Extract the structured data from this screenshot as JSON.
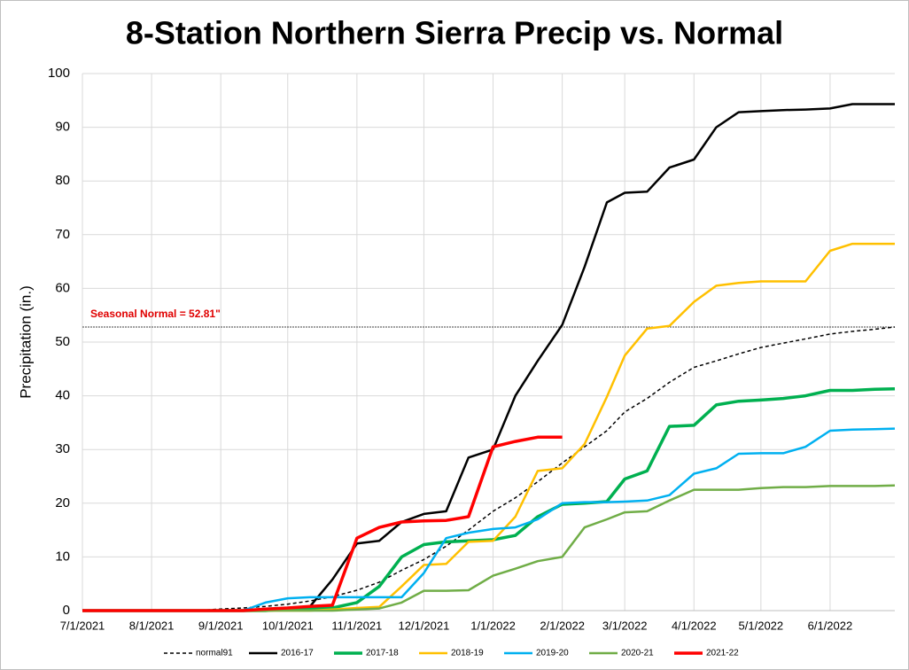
{
  "chart_data": {
    "type": "line",
    "title": "8-Station Northern Sierra Precip vs. Normal",
    "y_label": "Precipitation (in.)",
    "x": [
      "7/1/2021",
      "7/11/2021",
      "7/21/2021",
      "8/1/2021",
      "8/11/2021",
      "8/21/2021",
      "9/1/2021",
      "9/11/2021",
      "9/21/2021",
      "10/1/2021",
      "10/11/2021",
      "10/21/2021",
      "11/1/2021",
      "11/11/2021",
      "11/21/2021",
      "12/1/2021",
      "12/11/2021",
      "12/21/2021",
      "1/1/2022",
      "1/11/2022",
      "1/21/2022",
      "2/1/2022",
      "2/11/2022",
      "2/21/2022",
      "3/1/2022",
      "3/11/2022",
      "3/21/2022",
      "4/1/2022",
      "4/11/2022",
      "4/21/2022",
      "5/1/2022",
      "5/11/2022",
      "5/21/2022",
      "6/1/2022",
      "6/11/2022",
      "6/21/2022",
      "6/30/2022"
    ],
    "xlim": [
      "7/1/2021",
      "6/30/2022"
    ],
    "xticks": [
      "7/1/2021",
      "8/1/2021",
      "9/1/2021",
      "10/1/2021",
      "11/1/2021",
      "12/1/2021",
      "1/1/2022",
      "2/1/2022",
      "3/1/2022",
      "4/1/2022",
      "5/1/2022",
      "6/1/2022"
    ],
    "ylim": [
      0,
      100
    ],
    "yticks": [
      0,
      10,
      20,
      30,
      40,
      50,
      60,
      70,
      80,
      90,
      100
    ],
    "grid": true,
    "reference_line": {
      "value": 52.81,
      "label": "Seasonal Normal = 52.81\"",
      "color": "#e00000"
    },
    "legend": "bottom",
    "series": [
      {
        "name": "normal91",
        "color": "#000000",
        "dashed": true,
        "values": [
          0,
          0,
          0,
          0,
          0,
          0,
          0.3,
          0.5,
          0.8,
          1.2,
          1.8,
          2.6,
          3.8,
          5.3,
          7.5,
          9.5,
          12,
          15,
          18.5,
          21,
          24,
          27.5,
          30.5,
          33.5,
          37,
          39.5,
          42.5,
          45.3,
          46.5,
          47.8,
          49,
          49.8,
          50.6,
          51.5,
          52,
          52.4,
          52.81
        ]
      },
      {
        "name": "2016-17",
        "color": "#000000",
        "values": [
          0,
          0,
          0,
          0,
          0,
          0,
          0,
          0,
          0,
          0.2,
          0.8,
          5.8,
          12.5,
          13,
          16.5,
          18,
          18.5,
          28.5,
          30,
          40,
          46.5,
          53.2,
          64,
          76,
          77.8,
          78,
          82.5,
          84,
          90,
          92.8,
          93,
          93.2,
          93.3,
          93.5,
          94.3,
          94.3,
          94.3
        ]
      },
      {
        "name": "2017-18",
        "color": "#00b050",
        "values": [
          0,
          0,
          0,
          0,
          0,
          0,
          0,
          0,
          0,
          0.3,
          0.3,
          0.5,
          1.5,
          4.5,
          10,
          12.3,
          12.8,
          13,
          13.2,
          14,
          17.5,
          19.8,
          20,
          20.3,
          24.5,
          26,
          34.3,
          34.5,
          38.3,
          39,
          39.2,
          39.5,
          40,
          41,
          41,
          41.2,
          41.3
        ]
      },
      {
        "name": "2018-19",
        "color": "#ffc000",
        "values": [
          0,
          0,
          0,
          0,
          0,
          0,
          0,
          0,
          0,
          0,
          0,
          0.2,
          0.5,
          0.7,
          4.5,
          8.5,
          8.7,
          12.8,
          13,
          17.5,
          26,
          26.5,
          31,
          39.8,
          47.5,
          52.5,
          53,
          57.5,
          60.5,
          61,
          61.3,
          61.3,
          61.3,
          67,
          68.3,
          68.3,
          68.3
        ]
      },
      {
        "name": "2019-20",
        "color": "#00b0f0",
        "values": [
          0,
          0,
          0,
          0,
          0,
          0,
          0,
          0,
          1.5,
          2.3,
          2.5,
          2.5,
          2.5,
          2.5,
          2.5,
          7,
          13.5,
          14.5,
          15.2,
          15.5,
          17,
          20,
          20.2,
          20.2,
          20.3,
          20.5,
          21.5,
          25.5,
          26.5,
          29.2,
          29.3,
          29.3,
          30.5,
          33.5,
          33.7,
          33.8,
          33.9
        ]
      },
      {
        "name": "2020-21",
        "color": "#70ad47",
        "values": [
          0,
          0,
          0,
          0,
          0,
          0,
          0,
          0,
          0,
          0,
          0,
          0,
          0.2,
          0.4,
          1.5,
          3.7,
          3.7,
          3.8,
          6.5,
          7.8,
          9.2,
          10,
          15.5,
          17,
          18.3,
          18.5,
          20.5,
          22.5,
          22.5,
          22.5,
          22.8,
          23,
          23,
          23.2,
          23.2,
          23.2,
          23.3
        ]
      },
      {
        "name": "2021-22",
        "color": "#ff0000",
        "values": [
          0,
          0,
          0,
          0,
          0,
          0,
          0,
          0,
          0.3,
          0.5,
          0.8,
          1.0,
          13.5,
          15.5,
          16.5,
          16.7,
          16.8,
          17.5,
          30.5,
          31.5,
          32.3,
          32.3,
          null,
          null,
          null,
          null,
          null,
          null,
          null,
          null,
          null,
          null,
          null,
          null,
          null,
          null,
          null
        ]
      }
    ]
  }
}
